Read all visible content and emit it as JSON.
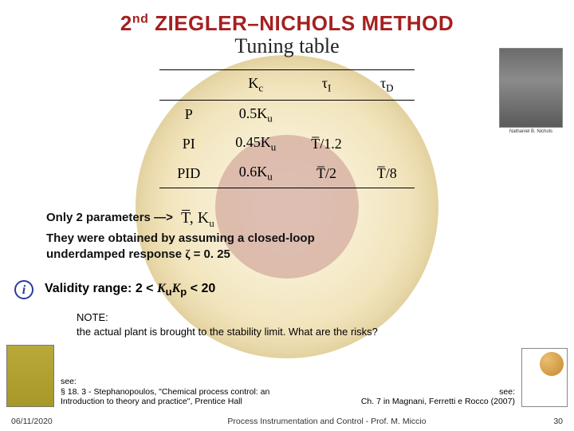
{
  "title": {
    "pre": "2",
    "sup": "nd",
    "rest": " ZIEGLER–NICHOLS METHOD"
  },
  "subtitle": "Tuning table",
  "portrait_caption": "Nathaniel B. Nichols",
  "table": {
    "headers": [
      "",
      "K",
      "τ",
      "τ"
    ],
    "header_subs": [
      "",
      "c",
      "I",
      "D"
    ],
    "rows": [
      {
        "label": "P",
        "kc_coef": "0.5",
        "kc_sym": "K",
        "kc_sub": "u",
        "ti": "",
        "td": ""
      },
      {
        "label": "PI",
        "kc_coef": "0.45",
        "kc_sym": "K",
        "kc_sub": "u",
        "ti": "T̅/1.2",
        "td": ""
      },
      {
        "label": "PID",
        "kc_coef": "0.6",
        "kc_sym": "K",
        "kc_sub": "u",
        "ti": "T̅/2",
        "td": "T̅/8"
      }
    ]
  },
  "para": {
    "line1a": "Only 2 parameters ",
    "arrow": "―>",
    "params": "T̅,  K",
    "params_sub": "u",
    "line2": "They were obtained by assuming a closed-loop",
    "line3a": "underdamped response ",
    "zeta": "ζ",
    "line3b": " = 0. 25"
  },
  "validity": {
    "pre": "Validity range: 2 < ",
    "ku": "K",
    "ku_sub": "u",
    "kp": "K",
    "kp_sub": "p",
    "post": " < 20"
  },
  "note": {
    "label": "NOTE:",
    "text": "the actual plant is brought to the stability limit. What are the risks?"
  },
  "ref_left": {
    "see": "see:",
    "text": "§ 18. 3 - Stephanopoulos, \"Chemical process control: an Introduction to theory and practice\", Prentice Hall"
  },
  "ref_right": {
    "see": "see:",
    "text": "Ch. 7 in Magnani, Ferretti e Rocco (2007)"
  },
  "footer": {
    "date": "06/11/2020",
    "mid": "Process Instrumentation and Control - Prof. M. Miccio",
    "page": "30"
  },
  "colors": {
    "title": "#a52020",
    "info_icon": "#2a3aa0",
    "background": "#ffffff"
  }
}
